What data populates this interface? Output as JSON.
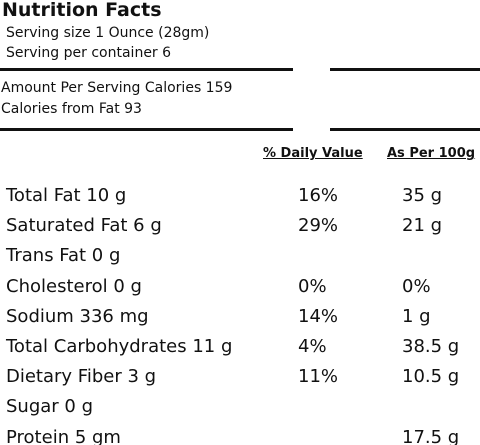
{
  "header": {
    "title": "Nutrition Facts",
    "serving_size": "Serving size 1 Ounce (28gm)",
    "servings_per_container": "Serving per container 6"
  },
  "calories": {
    "amount": "Amount Per Serving Calories 159",
    "from_fat": "Calories from Fat 93"
  },
  "table": {
    "columns": {
      "daily_value": "% Daily Value",
      "per_100g": "As Per 100g"
    },
    "rows": [
      {
        "nutrient": "Total Fat 10 g",
        "daily_value": "16%",
        "per_100g": "35 g"
      },
      {
        "nutrient": "Saturated Fat 6 g",
        "daily_value": "29%",
        "per_100g": "21 g"
      },
      {
        "nutrient": "Trans Fat 0 g"
      },
      {
        "nutrient": "Cholesterol 0 g",
        "daily_value": "0%",
        "per_100g": "0%"
      },
      {
        "nutrient": "Sodium 336 mg",
        "daily_value": "14%",
        "per_100g": "1 g"
      },
      {
        "nutrient": "Total Carbohydrates 11 g",
        "daily_value": "4%",
        "per_100g": "38.5 g"
      },
      {
        "nutrient": "Dietary Fiber 3 g",
        "daily_value": "11%",
        "per_100g": "10.5 g"
      },
      {
        "nutrient": "Sugar 0 g"
      },
      {
        "nutrient": "Protein 5 gm",
        "per_100g": "17.5 g"
      }
    ]
  }
}
